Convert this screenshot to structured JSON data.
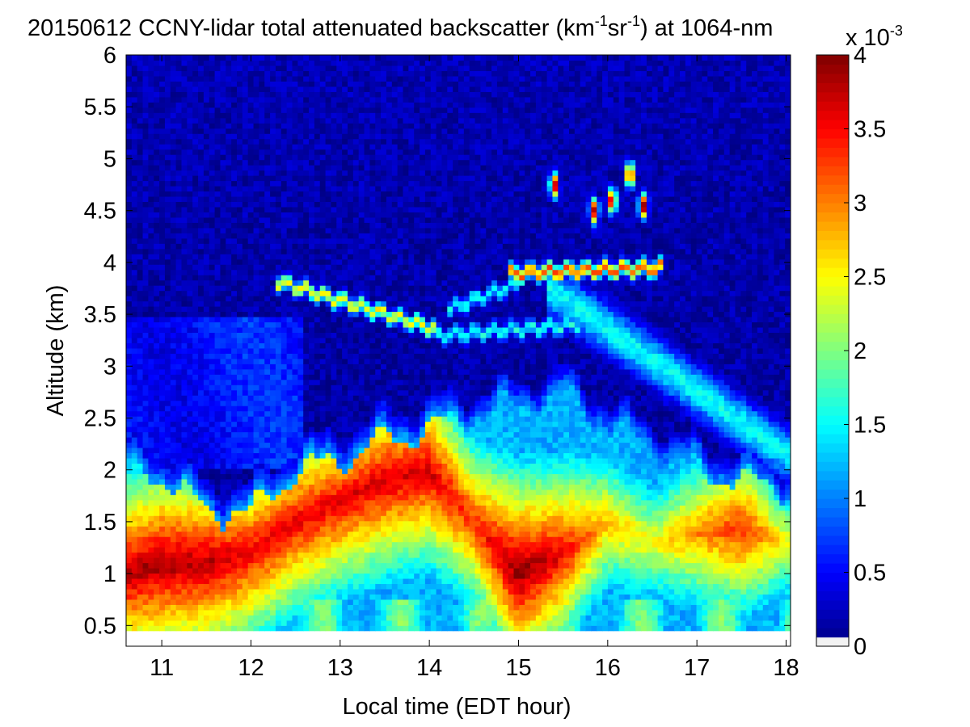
{
  "chart_data": {
    "type": "heatmap",
    "title_main": "20150612 CCNY-lidar total attenuated backscatter (km",
    "title_exp1": "-1",
    "title_mid": "sr",
    "title_exp2": "-1",
    "title_end": ") at 1064-nm",
    "xlabel": "Local time (EDT hour)",
    "ylabel": "Altitude (km)",
    "xlim": [
      10.6,
      18.05
    ],
    "ylim": [
      0.3,
      6
    ],
    "data_ylim": [
      0.45,
      6
    ],
    "xticks": [
      "11",
      "12",
      "13",
      "14",
      "15",
      "16",
      "17",
      "18"
    ],
    "yticks": [
      "0.5",
      "1",
      "1.5",
      "2",
      "2.5",
      "3",
      "3.5",
      "4",
      "4.5",
      "5",
      "5.5",
      "6"
    ],
    "colorbar": {
      "range": [
        0,
        4
      ],
      "ticks": [
        "0",
        "0.5",
        "1",
        "1.5",
        "2",
        "2.5",
        "3",
        "3.5",
        "4"
      ],
      "multiplier_prefix": "x 10",
      "multiplier_exp": "-3",
      "colormap": "jet"
    },
    "features": {
      "boundary_layer": [
        {
          "time": 10.6,
          "top_km": 2.0,
          "core_km": 1.0,
          "peak_value": 3.8
        },
        {
          "time": 11.0,
          "top_km": 1.95,
          "core_km": 1.1,
          "peak_value": 3.9
        },
        {
          "time": 11.5,
          "top_km": 1.6,
          "core_km": 1.1,
          "peak_value": 3.8
        },
        {
          "time": 12.0,
          "top_km": 1.6,
          "core_km": 1.2,
          "peak_value": 3.6
        },
        {
          "time": 12.5,
          "top_km": 2.0,
          "core_km": 1.5,
          "peak_value": 3.6
        },
        {
          "time": 13.0,
          "top_km": 2.1,
          "core_km": 1.7,
          "peak_value": 3.6
        },
        {
          "time": 13.5,
          "top_km": 2.3,
          "core_km": 1.9,
          "peak_value": 3.7
        },
        {
          "time": 14.0,
          "top_km": 2.4,
          "core_km": 2.0,
          "peak_value": 3.7
        },
        {
          "time": 14.5,
          "top_km": 2.5,
          "core_km": 1.5,
          "peak_value": 3.3
        },
        {
          "time": 15.0,
          "top_km": 2.6,
          "core_km": 1.0,
          "peak_value": 4.0
        },
        {
          "time": 15.5,
          "top_km": 2.7,
          "core_km": 1.2,
          "peak_value": 3.6
        },
        {
          "time": 16.0,
          "top_km": 2.4,
          "core_km": 1.5,
          "peak_value": 2.8
        },
        {
          "time": 16.5,
          "top_km": 2.2,
          "core_km": 1.3,
          "peak_value": 2.5
        },
        {
          "time": 17.0,
          "top_km": 2.0,
          "core_km": 1.4,
          "peak_value": 3.0
        },
        {
          "time": 17.5,
          "top_km": 1.9,
          "core_km": 1.45,
          "peak_value": 3.4
        },
        {
          "time": 18.0,
          "top_km": 1.8,
          "core_km": 1.3,
          "peak_value": 2.5
        }
      ],
      "aerosol_layers": [
        {
          "t_start": 12.3,
          "t_end": 14.1,
          "alt_start_km": 3.82,
          "alt_end_km": 3.35,
          "value": 2.5
        },
        {
          "t_start": 14.1,
          "t_end": 15.7,
          "alt_start_km": 3.3,
          "alt_end_km": 3.4,
          "value": 1.6
        },
        {
          "t_start": 14.2,
          "t_end": 15.0,
          "alt_start_km": 3.55,
          "alt_end_km": 3.8,
          "value": 1.6
        },
        {
          "t_start": 14.9,
          "t_end": 16.6,
          "alt_start_km": 3.9,
          "alt_end_km": 3.95,
          "value": 3.2
        }
      ],
      "clouds": [
        {
          "time": 15.4,
          "alt_km": 4.75,
          "value": 4.0
        },
        {
          "time": 15.85,
          "alt_km": 4.5,
          "value": 3.8
        },
        {
          "time": 16.05,
          "alt_km": 4.6,
          "value": 4.0
        },
        {
          "time": 16.25,
          "alt_km": 4.85,
          "value": 4.0
        },
        {
          "time": 16.4,
          "alt_km": 4.55,
          "value": 4.0
        }
      ]
    }
  }
}
